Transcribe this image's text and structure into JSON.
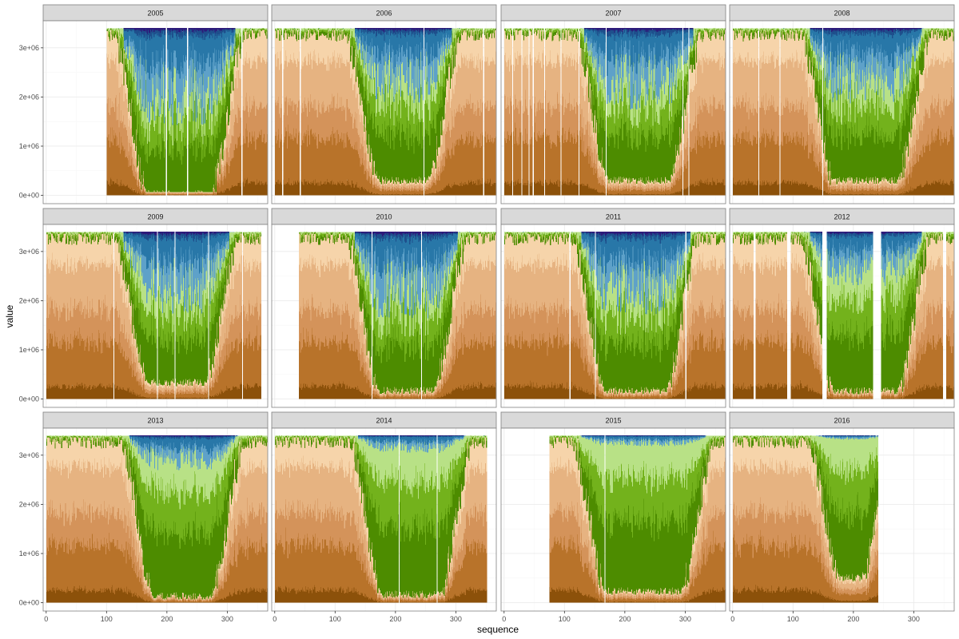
{
  "chart_data": {
    "type": "area",
    "xlabel": "sequence",
    "ylabel": "value",
    "xlim": [
      -5,
      367
    ],
    "ylim": [
      -170000,
      3550000
    ],
    "x_ticks": [
      0,
      100,
      200,
      300
    ],
    "y_ticks": [
      0,
      1000000,
      2000000,
      3000000
    ],
    "y_tick_labels": [
      "0e+00",
      "1e+06",
      "2e+06",
      "3e+06"
    ],
    "grid": true,
    "theme_colors": {
      "strip_fill": "#d9d9d9",
      "panel_border": "#7f7f7f",
      "grid_major": "#ebebeb",
      "grid_minor": "#f5f5f5"
    },
    "layer_colors": [
      "#8c510a",
      "#b8732a",
      "#d4935a",
      "#e6b381",
      "#f6d4aa",
      "#4d8c00",
      "#73b21c",
      "#b8e186",
      "#5ea1c9",
      "#2877a8",
      "#1e4f8c",
      "#2d1a7a"
    ],
    "total": 3400000,
    "facets": [
      {
        "year": "2005",
        "x_start": 100,
        "x_end": 365,
        "gaps": [
          198,
          233,
          323
        ],
        "min_frac": 0.01,
        "summer_start": 140,
        "summer_end": 300,
        "blue_depth": 0.45
      },
      {
        "year": "2006",
        "x_start": 0,
        "x_end": 365,
        "gaps": [
          12,
          41,
          246,
          345
        ],
        "min_frac": 0.09,
        "summer_start": 145,
        "summer_end": 280,
        "blue_depth": 0.35
      },
      {
        "year": "2007",
        "x_start": 0,
        "x_end": 365,
        "gaps": [
          13,
          28,
          40,
          47,
          66,
          93,
          123,
          168,
          295,
          305
        ],
        "min_frac": 0.09,
        "summer_start": 145,
        "summer_end": 300,
        "blue_depth": 0.38
      },
      {
        "year": "2008",
        "x_start": 0,
        "x_end": 365,
        "gaps": [
          42,
          77,
          148
        ],
        "min_frac": 0.09,
        "summer_start": 140,
        "summer_end": 300,
        "blue_depth": 0.35
      },
      {
        "year": "2009",
        "x_start": 0,
        "x_end": 355,
        "gaps": [
          111,
          183,
          212,
          268,
          324
        ],
        "min_frac": 0.1,
        "summer_start": 140,
        "summer_end": 290,
        "blue_depth": 0.38
      },
      {
        "year": "2010",
        "x_start": 40,
        "x_end": 365,
        "gaps": [
          160,
          242
        ],
        "min_frac": 0.05,
        "summer_start": 145,
        "summer_end": 290,
        "blue_depth": 0.4
      },
      {
        "year": "2011",
        "x_start": 0,
        "x_end": 365,
        "gaps": [
          108,
          150,
          300
        ],
        "min_frac": 0.05,
        "summer_start": 140,
        "summer_end": 295,
        "blue_depth": 0.38
      },
      {
        "year": "2012",
        "x_start": 0,
        "x_end": 365,
        "gaps": [
          34,
          90,
          148,
          232,
          348
        ],
        "gap_widths": [
          4,
          6,
          8,
          14,
          6
        ],
        "min_frac": 0.05,
        "summer_start": 140,
        "summer_end": 300,
        "blue_depth": 0.25
      },
      {
        "year": "2013",
        "x_start": 0,
        "x_end": 365,
        "gaps": [],
        "min_frac": 0.04,
        "summer_start": 150,
        "summer_end": 300,
        "blue_depth": 0.16
      },
      {
        "year": "2014",
        "x_start": 0,
        "x_end": 350,
        "gaps": [
          205,
          268
        ],
        "min_frac": 0.05,
        "summer_start": 150,
        "summer_end": 300,
        "blue_depth": 0.08
      },
      {
        "year": "2015",
        "x_start": 75,
        "x_end": 365,
        "gaps": [
          166
        ],
        "min_frac": 0.07,
        "summer_start": 140,
        "summer_end": 320,
        "blue_depth": 0.05
      },
      {
        "year": "2016",
        "x_start": 0,
        "x_end": 240,
        "gaps": [],
        "min_frac": 0.15,
        "summer_start": 150,
        "summer_end": 240,
        "blue_depth": 0.02
      }
    ]
  }
}
